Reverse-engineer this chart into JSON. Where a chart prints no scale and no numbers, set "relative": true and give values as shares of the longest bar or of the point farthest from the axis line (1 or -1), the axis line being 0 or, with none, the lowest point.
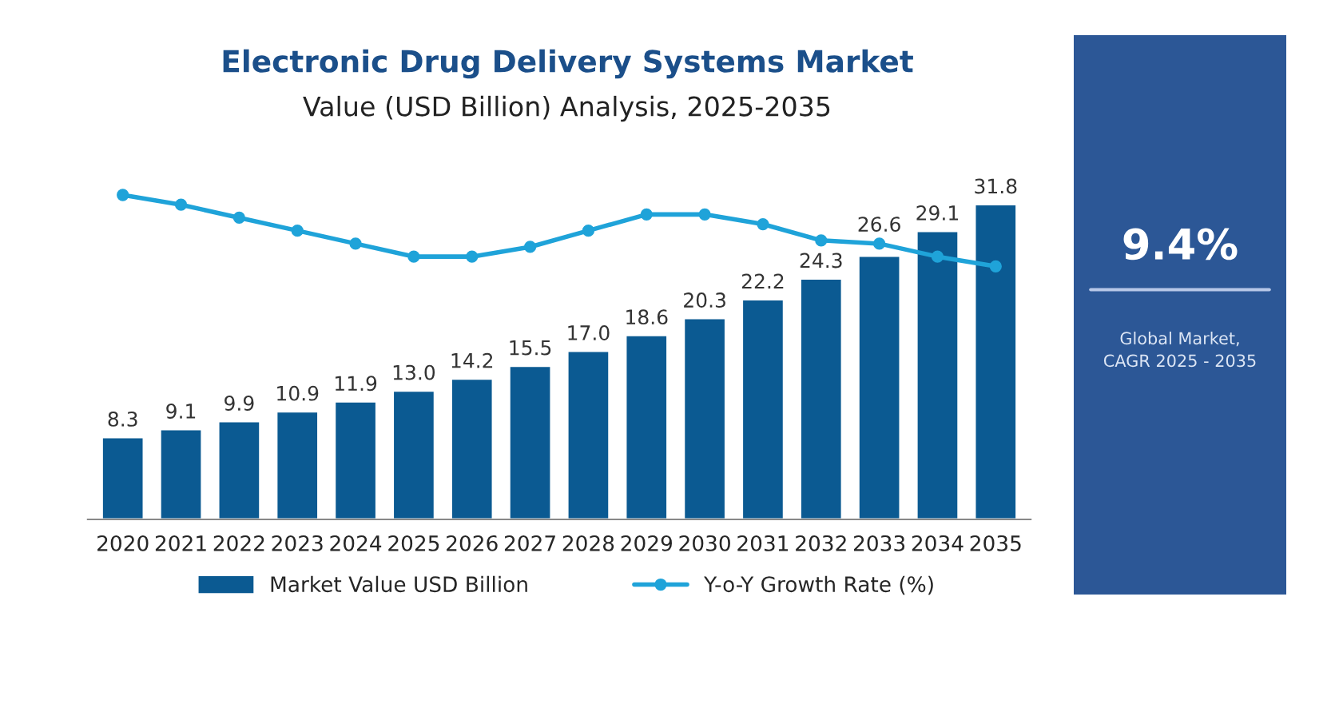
{
  "chart_data": [
    {
      "type": "bar",
      "title": "Electronic Drug Delivery Systems Market",
      "subtitle": "Value (USD Billion) Analysis, 2025-2035",
      "categories": [
        "2020",
        "2021",
        "2022",
        "2023",
        "2024",
        "2025",
        "2026",
        "2027",
        "2028",
        "2029",
        "2030",
        "2031",
        "2032",
        "2033",
        "2034",
        "2035"
      ],
      "series": [
        {
          "name": "Market Value USD Billion",
          "color": "#0b5a92",
          "values": [
            8.3,
            9.1,
            9.9,
            10.9,
            11.9,
            13.0,
            14.2,
            15.5,
            17.0,
            18.6,
            20.3,
            22.2,
            24.3,
            26.6,
            29.1,
            31.8
          ],
          "value_labels": [
            "8.3",
            "9.1",
            "9.9",
            "10.9",
            "11.9",
            "13.0",
            "14.2",
            "15.5",
            "17.0",
            "18.6",
            "20.3",
            "22.2",
            "24.3",
            "26.6",
            "29.1",
            "31.8"
          ]
        }
      ],
      "tick_labels": "x",
      "legend": "bottom"
    },
    {
      "type": "line",
      "relative": true,
      "categories": [
        "2020",
        "2021",
        "2022",
        "2023",
        "2024",
        "2025",
        "2026",
        "2027",
        "2028",
        "2029",
        "2030",
        "2031",
        "2032",
        "2033",
        "2034",
        "2035"
      ],
      "series": [
        {
          "name": "Y-o-Y Growth Rate (%)",
          "color": "#1fa3d9",
          "values": [
            1.0,
            0.97,
            0.93,
            0.89,
            0.85,
            0.81,
            0.81,
            0.84,
            0.89,
            0.94,
            0.94,
            0.91,
            0.86,
            0.85,
            0.81,
            0.78
          ]
        }
      ],
      "marker": "circle",
      "tick_labels": false,
      "legend": "bottom"
    },
    {
      "type": "other",
      "title": "9.4%",
      "annotations": [
        "Global Market,\nCAGR 2025 - 2035"
      ]
    }
  ]
}
